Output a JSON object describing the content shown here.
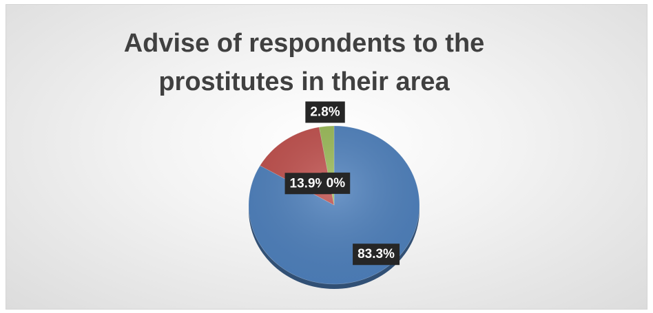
{
  "chart_data": {
    "type": "pie",
    "title": "Advise of respondents to the prostitutes in their area",
    "title_lines": [
      "Advise of respondents to the",
      "prostitutes in their area"
    ],
    "slices": [
      {
        "value": 83.3,
        "label": "83.3%",
        "color": "#4f81bd"
      },
      {
        "value": 13.9,
        "label": "13.9%",
        "color": "#c0504d"
      },
      {
        "value": 0,
        "label": "0%",
        "color": "#4bacc6"
      },
      {
        "value": 2.8,
        "label": "2.8%",
        "color": "#9bbb59"
      }
    ],
    "legend": "none"
  }
}
